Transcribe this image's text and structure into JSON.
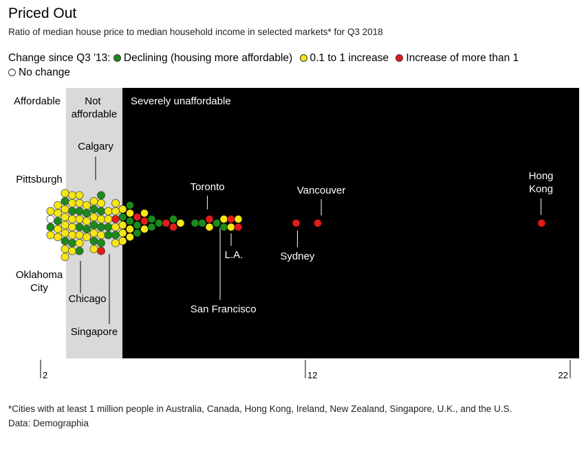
{
  "header": {
    "title": "Priced Out",
    "subtitle": "Ratio of median house price to median household income in selected markets* for Q3 2018"
  },
  "legend": {
    "prefix": "Change since Q3 '13:",
    "items": [
      {
        "label": "Declining (housing more affordable)",
        "color": "#1a8a1a"
      },
      {
        "label": "0.1 to 1 increase",
        "color": "#f5e614"
      },
      {
        "label": "Increase of more than 1",
        "color": "#e21b1b"
      },
      {
        "label": "No change",
        "color": "#ffffff"
      }
    ]
  },
  "footer": {
    "note": "*Cities with at least 1 million people in Australia, Canada, Hong Kong, Ireland, New Zealand, Singapore, U.K., and the U.S.",
    "source": "Data: Demographia"
  },
  "colors": {
    "declining": "#1a8a1a",
    "small_increase": "#f5e614",
    "large_increase": "#e21b1b",
    "no_change": "#ffffff",
    "not_affordable_bg": "#d9d9d9",
    "severe_bg": "#000000"
  },
  "chart_data": {
    "type": "scatter",
    "xlim": [
      2,
      22
    ],
    "ticks": [
      {
        "label": "2",
        "value": 2
      },
      {
        "label": "12",
        "value": 12
      },
      {
        "label": "22",
        "value": 22
      }
    ],
    "zones": [
      {
        "label": "Affordable",
        "from": 2,
        "to": 3
      },
      {
        "label": "Not affordable",
        "from": 3,
        "to": 5.1
      },
      {
        "label": "Severely unaffordable",
        "from": 5.1,
        "to": 22
      }
    ],
    "annotations": [
      {
        "label": "Calgary",
        "value": 4.1
      },
      {
        "label": "Pittsburgh",
        "value": 2.3
      },
      {
        "label": "Oklahoma City",
        "value": 2.5
      },
      {
        "label": "Chicago",
        "value": 3.5
      },
      {
        "label": "Singapore",
        "value": 4.7
      },
      {
        "label": "Toronto",
        "value": 8.3
      },
      {
        "label": "San Francisco",
        "value": 8.9
      },
      {
        "label": "L.A.",
        "value": 9.4
      },
      {
        "label": "Sydney",
        "value": 11.7
      },
      {
        "label": "Vancouver",
        "value": 12.6
      },
      {
        "label": "Hong Kong",
        "value": 20.9
      }
    ],
    "points": [
      {
        "value": 2.3,
        "change": "small_increase"
      },
      {
        "value": 2.3,
        "change": "no_change"
      },
      {
        "value": 2.5,
        "change": "declining"
      },
      {
        "value": 2.5,
        "change": "small_increase"
      },
      {
        "value": 2.6,
        "change": "small_increase"
      },
      {
        "value": 2.6,
        "change": "small_increase"
      },
      {
        "value": 2.6,
        "change": "declining"
      },
      {
        "value": 2.7,
        "change": "small_increase"
      },
      {
        "value": 2.7,
        "change": "small_increase"
      },
      {
        "value": 2.8,
        "change": "small_increase"
      },
      {
        "value": 2.8,
        "change": "declining"
      },
      {
        "value": 2.8,
        "change": "small_increase"
      },
      {
        "value": 2.9,
        "change": "small_increase"
      },
      {
        "value": 2.9,
        "change": "small_increase"
      },
      {
        "value": 3.0,
        "change": "small_increase"
      },
      {
        "value": 3.0,
        "change": "declining"
      },
      {
        "value": 3.0,
        "change": "small_increase"
      },
      {
        "value": 3.0,
        "change": "small_increase"
      },
      {
        "value": 3.1,
        "change": "small_increase"
      },
      {
        "value": 3.1,
        "change": "small_increase"
      },
      {
        "value": 3.2,
        "change": "declining"
      },
      {
        "value": 3.2,
        "change": "small_increase"
      },
      {
        "value": 3.2,
        "change": "small_increase"
      },
      {
        "value": 3.3,
        "change": "small_increase"
      },
      {
        "value": 3.3,
        "change": "declining"
      },
      {
        "value": 3.3,
        "change": "small_increase"
      },
      {
        "value": 3.4,
        "change": "small_increase"
      },
      {
        "value": 3.4,
        "change": "small_increase"
      },
      {
        "value": 3.5,
        "change": "declining"
      },
      {
        "value": 3.5,
        "change": "small_increase"
      },
      {
        "value": 3.5,
        "change": "declining"
      },
      {
        "value": 3.6,
        "change": "small_increase"
      },
      {
        "value": 3.6,
        "change": "small_increase"
      },
      {
        "value": 3.6,
        "change": "declining"
      },
      {
        "value": 3.7,
        "change": "small_increase"
      },
      {
        "value": 3.7,
        "change": "declining"
      },
      {
        "value": 3.8,
        "change": "small_increase"
      },
      {
        "value": 3.8,
        "change": "declining"
      },
      {
        "value": 3.8,
        "change": "small_increase"
      },
      {
        "value": 3.9,
        "change": "small_increase"
      },
      {
        "value": 3.9,
        "change": "declining"
      },
      {
        "value": 4.0,
        "change": "small_increase"
      },
      {
        "value": 4.0,
        "change": "declining"
      },
      {
        "value": 4.0,
        "change": "small_increase"
      },
      {
        "value": 4.1,
        "change": "declining"
      },
      {
        "value": 4.1,
        "change": "small_increase"
      },
      {
        "value": 4.2,
        "change": "declining"
      },
      {
        "value": 4.2,
        "change": "small_increase"
      },
      {
        "value": 4.2,
        "change": "declining"
      },
      {
        "value": 4.3,
        "change": "small_increase"
      },
      {
        "value": 4.3,
        "change": "declining"
      },
      {
        "value": 4.4,
        "change": "small_increase"
      },
      {
        "value": 4.4,
        "change": "declining"
      },
      {
        "value": 4.4,
        "change": "large_increase"
      },
      {
        "value": 4.5,
        "change": "small_increase"
      },
      {
        "value": 4.5,
        "change": "small_increase"
      },
      {
        "value": 4.6,
        "change": "declining"
      },
      {
        "value": 4.6,
        "change": "declining"
      },
      {
        "value": 4.7,
        "change": "small_increase"
      },
      {
        "value": 4.7,
        "change": "small_increase"
      },
      {
        "value": 4.8,
        "change": "large_increase"
      },
      {
        "value": 4.8,
        "change": "small_increase"
      },
      {
        "value": 4.9,
        "change": "declining"
      },
      {
        "value": 4.9,
        "change": "small_increase"
      },
      {
        "value": 5.0,
        "change": "small_increase"
      },
      {
        "value": 5.0,
        "change": "declining"
      },
      {
        "value": 5.0,
        "change": "small_increase"
      },
      {
        "value": 5.1,
        "change": "small_increase"
      },
      {
        "value": 5.2,
        "change": "small_increase"
      },
      {
        "value": 5.3,
        "change": "declining"
      },
      {
        "value": 5.3,
        "change": "small_increase"
      },
      {
        "value": 5.4,
        "change": "declining"
      },
      {
        "value": 5.4,
        "change": "small_increase"
      },
      {
        "value": 5.5,
        "change": "small_increase"
      },
      {
        "value": 5.6,
        "change": "large_increase"
      },
      {
        "value": 5.6,
        "change": "declining"
      },
      {
        "value": 5.7,
        "change": "declining"
      },
      {
        "value": 5.8,
        "change": "small_increase"
      },
      {
        "value": 5.8,
        "change": "large_increase"
      },
      {
        "value": 6.0,
        "change": "small_increase"
      },
      {
        "value": 6.2,
        "change": "declining"
      },
      {
        "value": 6.3,
        "change": "declining"
      },
      {
        "value": 6.6,
        "change": "declining"
      },
      {
        "value": 6.7,
        "change": "large_increase"
      },
      {
        "value": 6.9,
        "change": "declining"
      },
      {
        "value": 7.1,
        "change": "large_increase"
      },
      {
        "value": 7.3,
        "change": "small_increase"
      },
      {
        "value": 7.7,
        "change": "declining"
      },
      {
        "value": 8.2,
        "change": "declining"
      },
      {
        "value": 8.3,
        "change": "large_increase"
      },
      {
        "value": 8.3,
        "change": "small_increase"
      },
      {
        "value": 8.7,
        "change": "declining"
      },
      {
        "value": 8.8,
        "change": "small_increase"
      },
      {
        "value": 8.9,
        "change": "declining"
      },
      {
        "value": 9.1,
        "change": "large_increase"
      },
      {
        "value": 9.2,
        "change": "small_increase"
      },
      {
        "value": 9.4,
        "change": "small_increase"
      },
      {
        "value": 9.5,
        "change": "large_increase"
      },
      {
        "value": 11.7,
        "change": "large_increase"
      },
      {
        "value": 12.6,
        "change": "large_increase"
      },
      {
        "value": 20.9,
        "change": "large_increase"
      }
    ]
  }
}
